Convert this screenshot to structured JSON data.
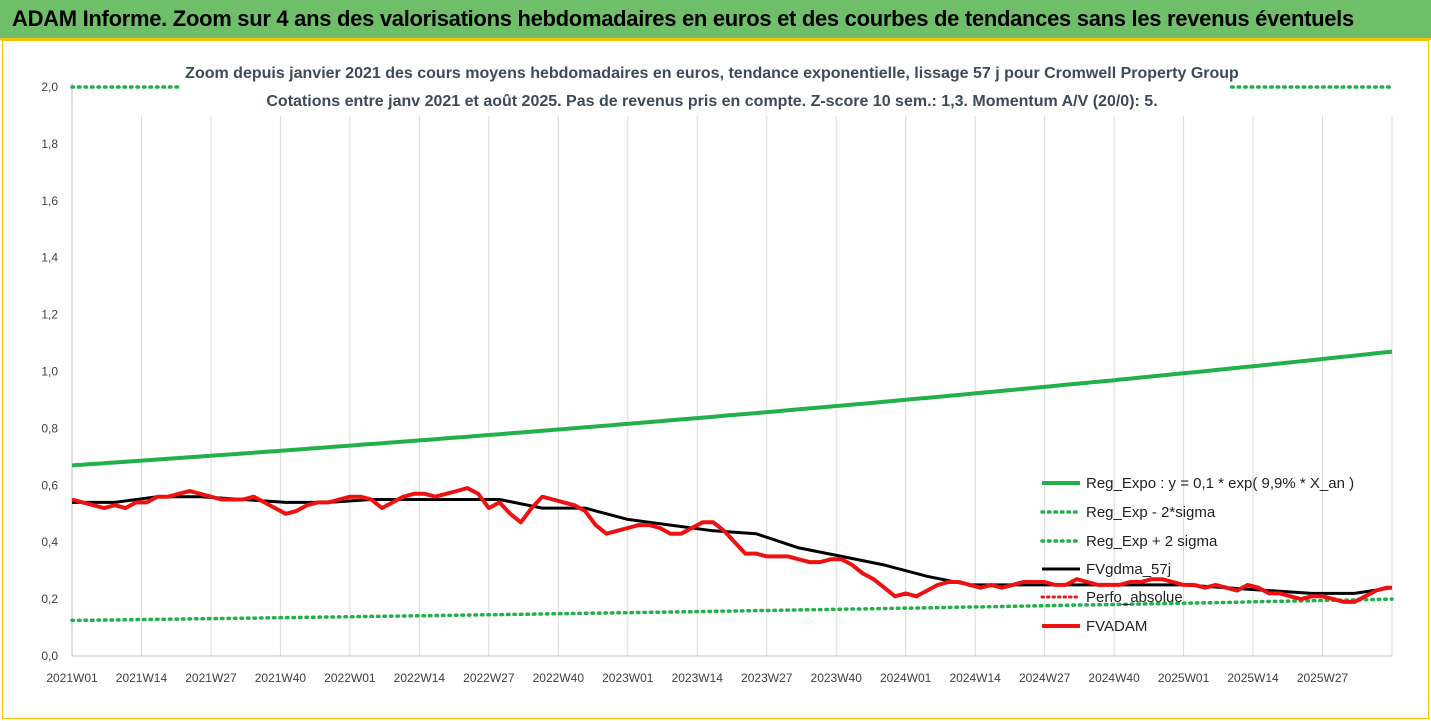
{
  "header": {
    "banner_title": "ADAM Informe. Zoom sur 4 ans des valorisations hebdomadaires en euros et des courbes de tendances sans les revenus éventuels",
    "banner_color": "#6fbf6a"
  },
  "chart_data": {
    "type": "line",
    "title": "Zoom depuis janvier 2021 des cours moyens hebdomadaires en euros, tendance exponentielle, lissage 57 j pour Cromwell Property Group",
    "subtitle": "Cotations entre janv 2021 et août 2025.  Pas de revenus pris en compte. Z-score 10 sem.: 1,3. Momentum A/V (20/0): 5.",
    "xlabel": "",
    "ylabel": "",
    "ylim": [
      0,
      2
    ],
    "grid": "vertical",
    "legend_position": "right",
    "yticks": [
      "0,0",
      "0,2",
      "0,4",
      "0,6",
      "0,8",
      "1,0",
      "1,2",
      "1,4",
      "1,6",
      "1,8",
      "2,0"
    ],
    "xticks": [
      "2021W01",
      "2021W14",
      "2021W27",
      "2021W40",
      "2022W01",
      "2022W14",
      "2022W27",
      "2022W40",
      "2023W01",
      "2023W14",
      "2023W27",
      "2023W40",
      "2024W01",
      "2024W14",
      "2024W27",
      "2024W40",
      "2025W01",
      "2025W14",
      "2025W27"
    ],
    "x_range_weeks": [
      0,
      247
    ],
    "series": [
      {
        "name": "Reg_Expo : y = 0,1 * exp( 9,9% *  X_an )",
        "color": "#22b04a",
        "style": "solid",
        "x": [
          0,
          247
        ],
        "start": 0.67,
        "end": 1.07
      },
      {
        "name": "Reg_Exp - 2*sigma",
        "color": "#22b04a",
        "style": "dotted",
        "x": [
          0,
          247
        ],
        "start": 0.125,
        "end": 0.2
      },
      {
        "name": "Reg_Exp + 2 sigma",
        "color": "#22b04a",
        "style": "dotted",
        "x": [
          0,
          247
        ],
        "start": 2.0,
        "end": 2.0,
        "visible_ranges": [
          [
            0,
            20
          ],
          [
            217,
            247
          ]
        ]
      },
      {
        "name": "FVgdma_57j",
        "color": "#000000",
        "style": "solid",
        "x": [
          0,
          8,
          16,
          24,
          32,
          40,
          48,
          56,
          64,
          72,
          80,
          88,
          96,
          104,
          112,
          120,
          128,
          136,
          144,
          152,
          160,
          168,
          176,
          184,
          192,
          200,
          208,
          216,
          224,
          232,
          240,
          247
        ],
        "values": [
          0.54,
          0.54,
          0.56,
          0.56,
          0.55,
          0.54,
          0.54,
          0.55,
          0.55,
          0.55,
          0.55,
          0.52,
          0.52,
          0.48,
          0.46,
          0.44,
          0.43,
          0.38,
          0.35,
          0.32,
          0.28,
          0.25,
          0.25,
          0.25,
          0.25,
          0.25,
          0.25,
          0.24,
          0.23,
          0.22,
          0.22,
          0.24
        ]
      },
      {
        "name": "Perfo_absolue",
        "color": "#e02020",
        "style": "dotted",
        "values": []
      },
      {
        "name": "FVADAM",
        "color": "#ee1111",
        "style": "solid",
        "x": [
          0,
          2,
          4,
          6,
          8,
          10,
          12,
          14,
          16,
          18,
          20,
          22,
          24,
          26,
          28,
          30,
          32,
          34,
          36,
          38,
          40,
          42,
          44,
          46,
          48,
          50,
          52,
          54,
          56,
          58,
          60,
          62,
          64,
          66,
          68,
          70,
          72,
          74,
          76,
          78,
          80,
          82,
          84,
          86,
          88,
          90,
          92,
          94,
          96,
          98,
          100,
          102,
          104,
          106,
          108,
          110,
          112,
          114,
          116,
          118,
          120,
          122,
          124,
          126,
          128,
          130,
          132,
          134,
          136,
          138,
          140,
          142,
          144,
          146,
          148,
          150,
          152,
          154,
          156,
          158,
          160,
          162,
          164,
          166,
          168,
          170,
          172,
          174,
          176,
          178,
          180,
          182,
          184,
          186,
          188,
          190,
          192,
          194,
          196,
          198,
          200,
          202,
          204,
          206,
          208,
          210,
          212,
          214,
          216,
          218,
          220,
          222,
          224,
          226,
          228,
          230,
          232,
          234,
          236,
          238,
          240,
          242,
          244,
          246,
          247
        ],
        "values": [
          0.55,
          0.54,
          0.53,
          0.52,
          0.53,
          0.52,
          0.54,
          0.54,
          0.56,
          0.56,
          0.57,
          0.58,
          0.57,
          0.56,
          0.55,
          0.55,
          0.55,
          0.56,
          0.54,
          0.52,
          0.5,
          0.51,
          0.53,
          0.54,
          0.54,
          0.55,
          0.56,
          0.56,
          0.55,
          0.52,
          0.54,
          0.56,
          0.57,
          0.57,
          0.56,
          0.57,
          0.58,
          0.59,
          0.57,
          0.52,
          0.54,
          0.5,
          0.47,
          0.52,
          0.56,
          0.55,
          0.54,
          0.53,
          0.51,
          0.46,
          0.43,
          0.44,
          0.45,
          0.46,
          0.46,
          0.45,
          0.43,
          0.43,
          0.45,
          0.47,
          0.47,
          0.44,
          0.4,
          0.36,
          0.36,
          0.35,
          0.35,
          0.35,
          0.34,
          0.33,
          0.33,
          0.34,
          0.34,
          0.32,
          0.29,
          0.27,
          0.24,
          0.21,
          0.22,
          0.21,
          0.23,
          0.25,
          0.26,
          0.26,
          0.25,
          0.24,
          0.25,
          0.24,
          0.25,
          0.26,
          0.26,
          0.26,
          0.25,
          0.25,
          0.27,
          0.26,
          0.25,
          0.25,
          0.25,
          0.26,
          0.26,
          0.27,
          0.27,
          0.26,
          0.25,
          0.25,
          0.24,
          0.25,
          0.24,
          0.23,
          0.25,
          0.24,
          0.22,
          0.22,
          0.21,
          0.2,
          0.21,
          0.21,
          0.2,
          0.19,
          0.19,
          0.21,
          0.23,
          0.24,
          0.24
        ]
      }
    ]
  }
}
